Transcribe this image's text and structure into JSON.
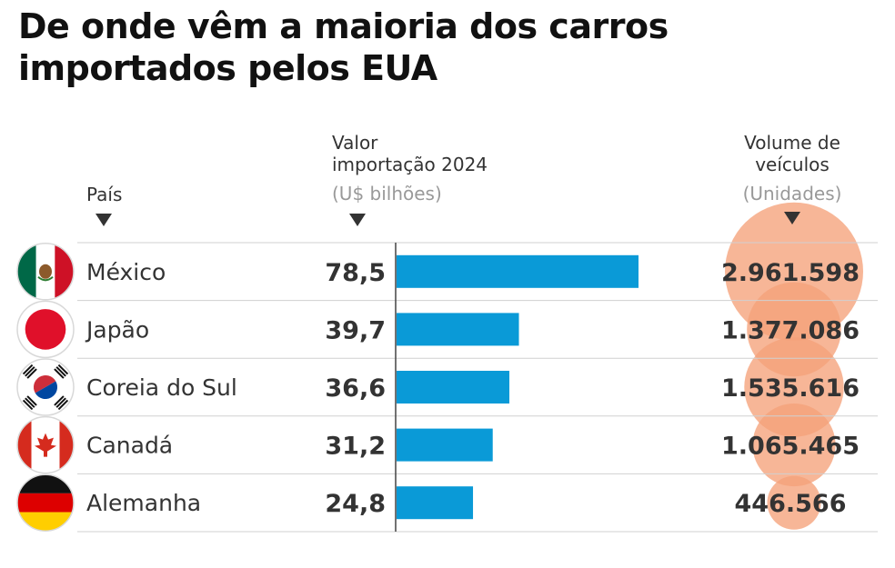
{
  "title": "De onde vêm a maioria dos carros importados pelos EUA",
  "headers": {
    "country": "País",
    "value_line1": "Valor",
    "value_line2": "importação 2024",
    "value_unit": "(U$ bilhões)",
    "volume_line1": "Volume de",
    "volume_line2": "veículos",
    "volume_unit": "(Unidades)"
  },
  "colors": {
    "bar": "#0a9ad7",
    "bubble": "#f5a27a",
    "text": "#333333",
    "muted": "#999999",
    "grid": "#d0d0d0"
  },
  "chart_data": {
    "type": "bar",
    "title": "De onde vêm a maioria dos carros importados pelos EUA",
    "categories": [
      "México",
      "Japão",
      "Coreia do Sul",
      "Canadá",
      "Alemanha"
    ],
    "series": [
      {
        "name": "Valor importação 2024 (U$ bilhões)",
        "values": [
          78.5,
          39.7,
          36.6,
          31.2,
          24.8
        ],
        "labels": [
          "78,5",
          "39,7",
          "36,6",
          "31,2",
          "24,8"
        ]
      },
      {
        "name": "Volume de veículos (Unidades)",
        "values": [
          2961598,
          1377086,
          1535616,
          1065465,
          446566
        ],
        "labels": [
          "2.961.598",
          "1.377.086",
          "1.535.616",
          "1.065.465",
          "446.566"
        ]
      }
    ],
    "flags": [
      "mexico-flag-icon",
      "japan-flag-icon",
      "south-korea-flag-icon",
      "canada-flag-icon",
      "germany-flag-icon"
    ],
    "xlim": [
      0,
      78.5
    ],
    "grid": true,
    "legend": "none"
  }
}
